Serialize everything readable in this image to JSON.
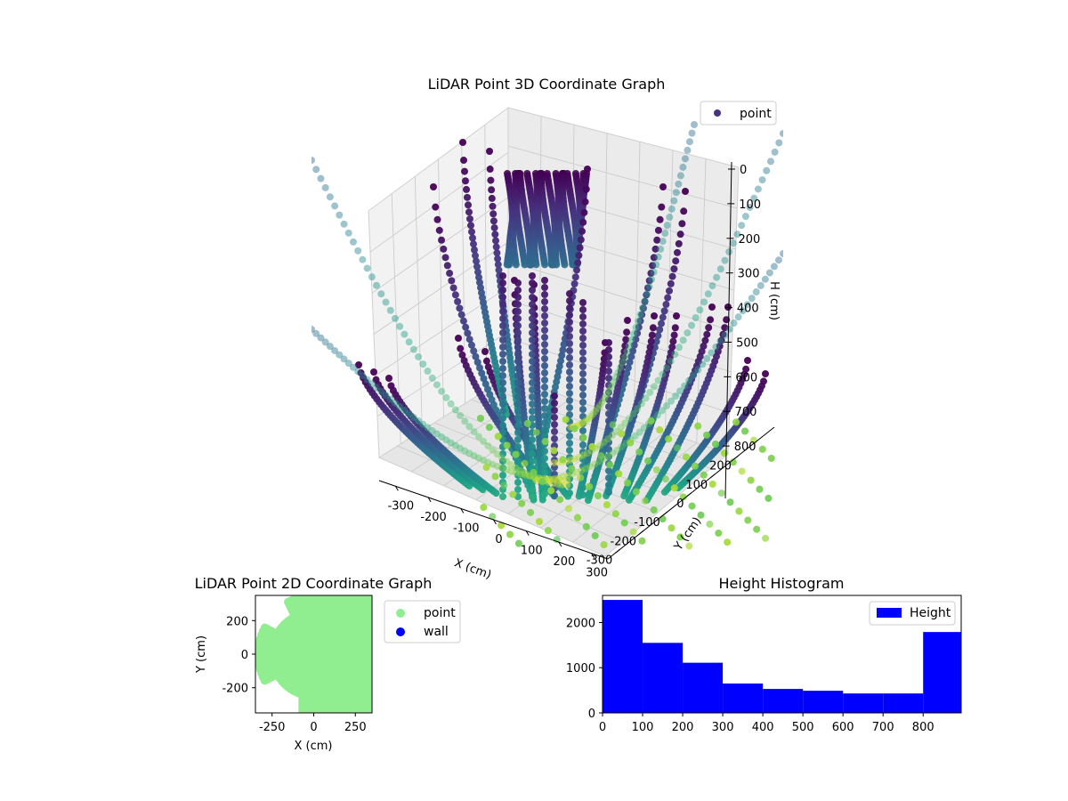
{
  "chart_data": [
    {
      "type": "scatter",
      "projection": "3d",
      "title": "LiDAR Point 3D Coordinate Graph",
      "xlabel": "X (cm)",
      "ylabel": "Y (cm)",
      "zlabel": "H (cm)",
      "x_ticks": [
        "-300",
        "-200",
        "-100",
        "0",
        "100",
        "200",
        "300"
      ],
      "y_ticks": [
        "-300",
        "-200",
        "-100",
        "0",
        "100",
        "200"
      ],
      "z_ticks": [
        "0",
        "100",
        "200",
        "300",
        "400",
        "500",
        "600",
        "700",
        "800"
      ],
      "xlim": [
        -350,
        350
      ],
      "ylim": [
        -350,
        350
      ],
      "zlim": [
        0,
        900
      ],
      "z_inverted": true,
      "colormap": "viridis",
      "legend": [
        {
          "label": "point",
          "color": "#46327e"
        }
      ],
      "legend_position": "upper right",
      "grid": true
    },
    {
      "type": "scatter",
      "title": "LiDAR Point 2D Coordinate Graph",
      "xlabel": "X (cm)",
      "ylabel": "Y (cm)",
      "x_ticks": [
        "-250",
        "0",
        "250"
      ],
      "y_ticks": [
        "200",
        "0",
        "-200"
      ],
      "xlim": [
        -350,
        350
      ],
      "ylim": [
        -350,
        350
      ],
      "series": [
        {
          "name": "point",
          "color": "#90ee90"
        },
        {
          "name": "wall",
          "color": "#0000ff"
        }
      ],
      "legend_position": "outside right",
      "grid": false
    },
    {
      "type": "bar",
      "title": "Height Histogram",
      "xlabel": "",
      "ylabel": "",
      "bins": [
        {
          "from": 0,
          "to": 100,
          "count": 2500
        },
        {
          "from": 100,
          "to": 200,
          "count": 1550
        },
        {
          "from": 200,
          "to": 300,
          "count": 1110
        },
        {
          "from": 300,
          "to": 400,
          "count": 650
        },
        {
          "from": 400,
          "to": 500,
          "count": 530
        },
        {
          "from": 500,
          "to": 600,
          "count": 490
        },
        {
          "from": 600,
          "to": 700,
          "count": 430
        },
        {
          "from": 700,
          "to": 800,
          "count": 430
        },
        {
          "from": 800,
          "to": 900,
          "count": 1790
        }
      ],
      "x_ticks": [
        "0",
        "100",
        "200",
        "300",
        "400",
        "500",
        "600",
        "700",
        "800"
      ],
      "y_ticks": [
        "0",
        "1000",
        "2000"
      ],
      "xlim": [
        0,
        895
      ],
      "ylim": [
        0,
        2600
      ],
      "series": [
        {
          "name": "Height",
          "color": "#0000ff"
        }
      ],
      "legend_position": "upper right",
      "grid": false
    }
  ]
}
